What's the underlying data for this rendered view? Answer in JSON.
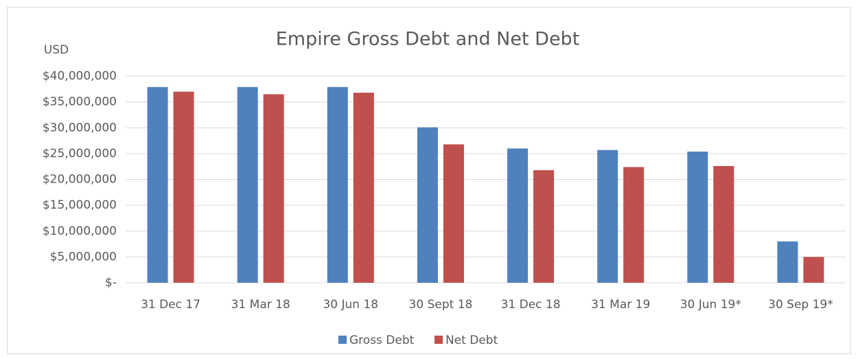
{
  "chart_data": {
    "type": "bar",
    "title": "Empire Gross Debt and Net Debt",
    "ylabel": "USD",
    "categories": [
      "31 Dec 17",
      "31 Mar 18",
      "30 Jun 18",
      "30 Sept 18",
      "31 Dec 18",
      "31 Mar 19",
      "30 Jun 19*",
      "30 Sep 19*"
    ],
    "series": [
      {
        "name": "Gross Debt",
        "color": "#4f81bd",
        "values": [
          37900000,
          37900000,
          37900000,
          30100000,
          26000000,
          25700000,
          25400000,
          8000000
        ]
      },
      {
        "name": "Net Debt",
        "color": "#c0504d",
        "values": [
          37000000,
          36500000,
          36800000,
          26800000,
          21800000,
          22400000,
          22600000,
          5000000
        ]
      }
    ],
    "ylim": [
      0,
      40000000
    ],
    "yticks": [
      {
        "value": 0,
        "label": "$-"
      },
      {
        "value": 5000000,
        "label": "$5,000,000"
      },
      {
        "value": 10000000,
        "label": "$10,000,000"
      },
      {
        "value": 15000000,
        "label": "$15,000,000"
      },
      {
        "value": 20000000,
        "label": "$20,000,000"
      },
      {
        "value": 25000000,
        "label": "$25,000,000"
      },
      {
        "value": 30000000,
        "label": "$30,000,000"
      },
      {
        "value": 35000000,
        "label": "$35,000,000"
      },
      {
        "value": 40000000,
        "label": "$40,000,000"
      }
    ],
    "grid": true,
    "legend": "bottom"
  }
}
